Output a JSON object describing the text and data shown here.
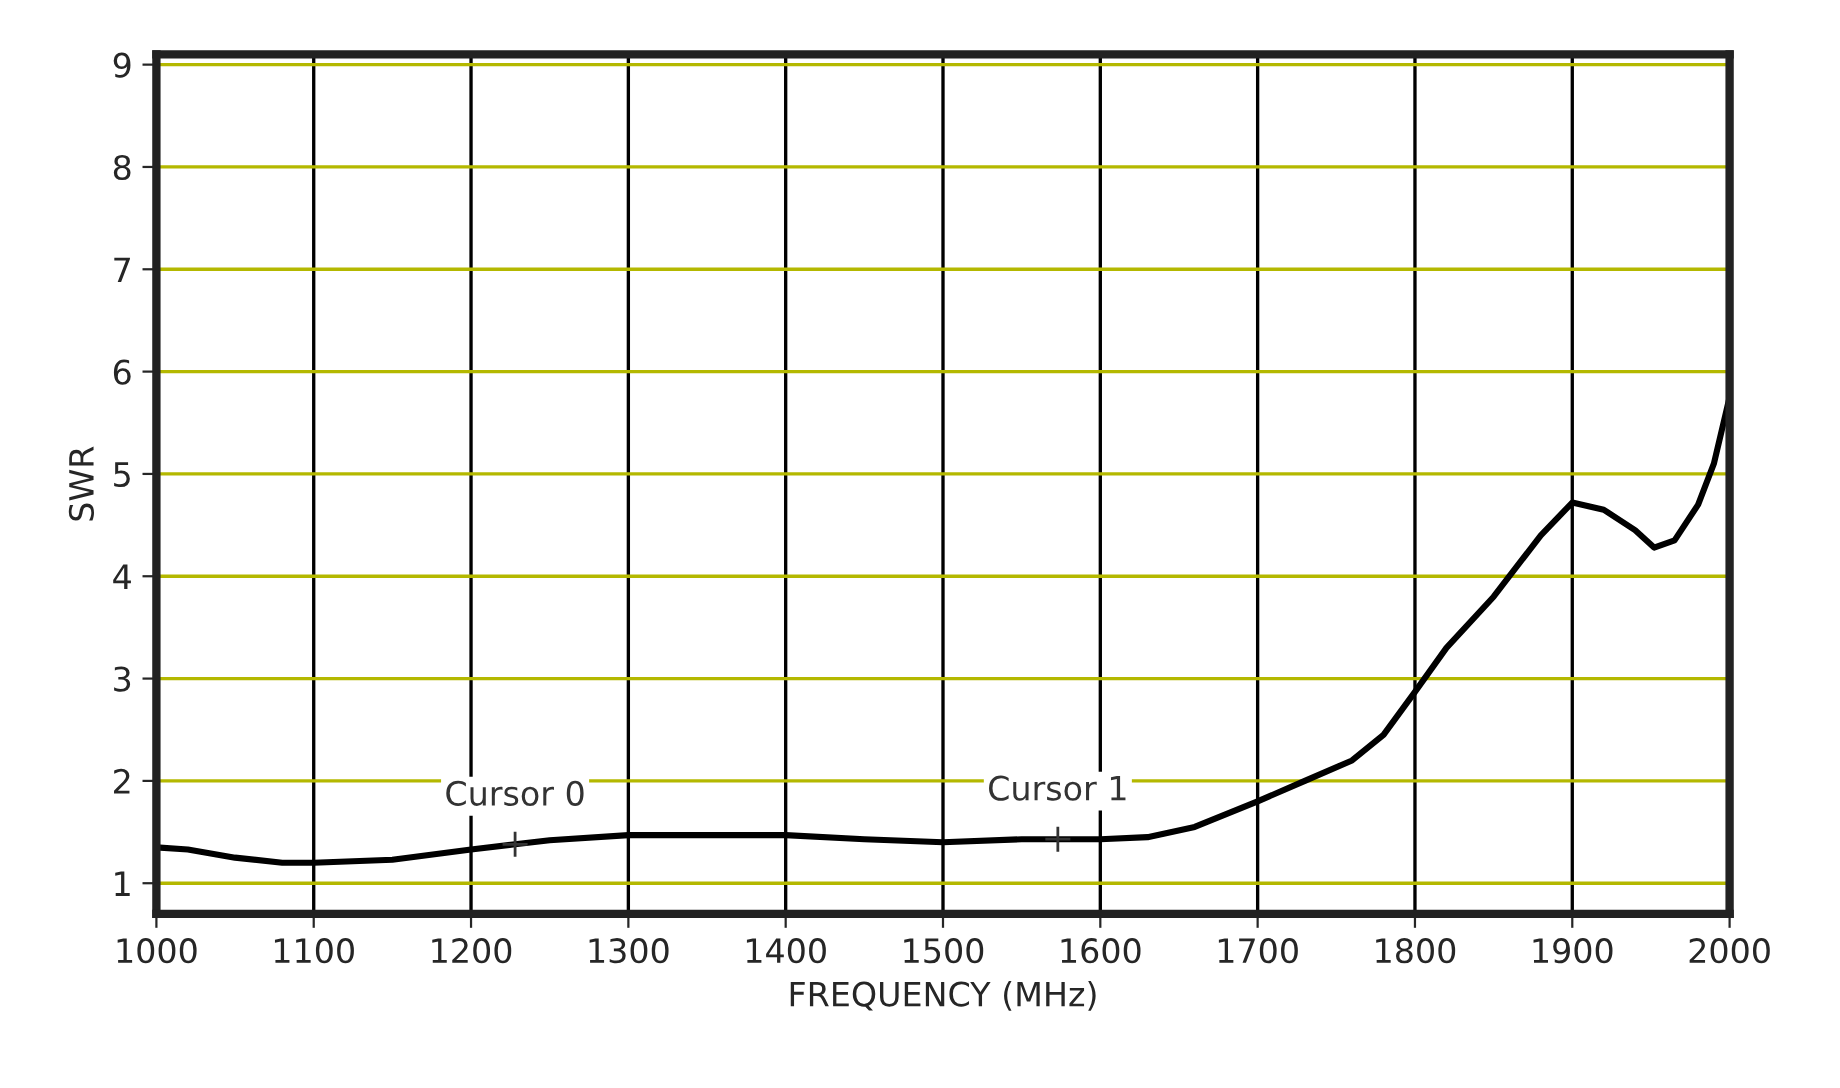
{
  "chart_data": {
    "type": "line",
    "xlabel": "FREQUENCY (MHz)",
    "ylabel": "SWR",
    "x": [
      1000,
      1020,
      1050,
      1080,
      1100,
      1150,
      1200,
      1228,
      1250,
      1300,
      1350,
      1400,
      1450,
      1500,
      1550,
      1600,
      1630,
      1660,
      1700,
      1730,
      1760,
      1780,
      1800,
      1820,
      1850,
      1880,
      1900,
      1920,
      1940,
      1952,
      1965,
      1980,
      1990,
      2000
    ],
    "series": [
      {
        "color": "#000000",
        "values": [
          1.35,
          1.33,
          1.25,
          1.2,
          1.2,
          1.23,
          1.33,
          1.38,
          1.42,
          1.47,
          1.47,
          1.47,
          1.43,
          1.4,
          1.43,
          1.43,
          1.45,
          1.55,
          1.8,
          2.0,
          2.2,
          2.45,
          2.87,
          3.3,
          3.8,
          4.4,
          4.72,
          4.65,
          4.45,
          4.28,
          4.35,
          4.7,
          5.1,
          5.75
        ]
      }
    ],
    "xlim": [
      1000,
      2000
    ],
    "ylim": [
      0.7,
      9.1
    ],
    "xticks": [
      1000,
      1100,
      1200,
      1300,
      1400,
      1500,
      1600,
      1700,
      1800,
      1900,
      2000
    ],
    "yticks": [
      1,
      2,
      3,
      4,
      5,
      6,
      7,
      8,
      9
    ],
    "grid": true,
    "marker": "none",
    "line_style": "solid",
    "annotations": [
      {
        "text": "Cursor 0",
        "x": 1228,
        "y": 1.38
      },
      {
        "text": "Cursor 1",
        "x": 1573,
        "y": 1.43
      }
    ]
  }
}
